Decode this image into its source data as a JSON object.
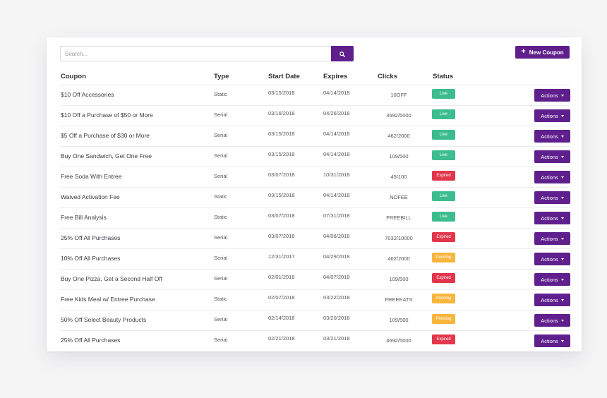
{
  "search": {
    "placeholder": "Search...",
    "icon": "search-icon"
  },
  "new_coupon_label": "New Coupon",
  "columns": {
    "coupon": "Coupon",
    "type": "Type",
    "start_date": "Start Date",
    "expires": "Expires",
    "clicks": "Clicks",
    "status": "Status"
  },
  "action_label": "Actions",
  "status_colors": {
    "Live": "#3dbd8e",
    "Expired": "#e2364b",
    "Pending": "#f9b53c"
  },
  "accent": "#5f1f8c",
  "rows": [
    {
      "name": "$10 Off Accessories",
      "type": "Static",
      "start": "03/15/2018",
      "expires": "04/14/2018",
      "clicks": "10OFF",
      "status": "Live"
    },
    {
      "name": "$10 Off a Purchase of $50 or More",
      "type": "Serial",
      "start": "03/16/2018",
      "expires": "04/26/2018",
      "clicks": "4692/5000",
      "status": "Live"
    },
    {
      "name": "$5 Off a Purchase of $30 or More",
      "type": "Serial",
      "start": "03/15/2018",
      "expires": "04/14/2018",
      "clicks": "462/2000",
      "status": "Live"
    },
    {
      "name": "Buy One Sandwich, Get One Free",
      "type": "Serial",
      "start": "03/15/2018",
      "expires": "04/14/2018",
      "clicks": "109/500",
      "status": "Live"
    },
    {
      "name": "Free Soda With Entree",
      "type": "Serial",
      "start": "03/07/2018",
      "expires": "10/31/2018",
      "clicks": "45/100",
      "status": "Expired"
    },
    {
      "name": "Waived Activation Fee",
      "type": "Static",
      "start": "03/15/2018",
      "expires": "04/14/2018",
      "clicks": "NOFEE",
      "status": "Live"
    },
    {
      "name": "Free Bill Analysis",
      "type": "Static",
      "start": "03/07/2018",
      "expires": "07/31/2018",
      "clicks": "FREEBILL",
      "status": "Live"
    },
    {
      "name": "25% Off All Purchases",
      "type": "Serial",
      "start": "03/07/2018",
      "expires": "04/06/2018",
      "clicks": "7032/10000",
      "status": "Expired"
    },
    {
      "name": "10% Off All Purchases",
      "type": "Serial",
      "start": "12/31/2017",
      "expires": "04/29/2018",
      "clicks": "462/2000",
      "status": "Pending"
    },
    {
      "name": "Buy One Pizza, Get a Second Half Off",
      "type": "Serial",
      "start": "02/01/2018",
      "expires": "04/07/2018",
      "clicks": "109/500",
      "status": "Expired"
    },
    {
      "name": "Free Kids Meal w/ Entree Purchase",
      "type": "Static",
      "start": "02/07/2018",
      "expires": "03/22/2018",
      "clicks": "FREEEATS",
      "status": "Pending"
    },
    {
      "name": "50% Off Select Beauty Products",
      "type": "Serial",
      "start": "02/14/2018",
      "expires": "03/20/2018",
      "clicks": "109/500",
      "status": "Pending"
    },
    {
      "name": "25% Off All Purchases",
      "type": "Serial",
      "start": "02/21/2018",
      "expires": "03/21/2018",
      "clicks": "4692/5000",
      "status": "Expired"
    }
  ]
}
